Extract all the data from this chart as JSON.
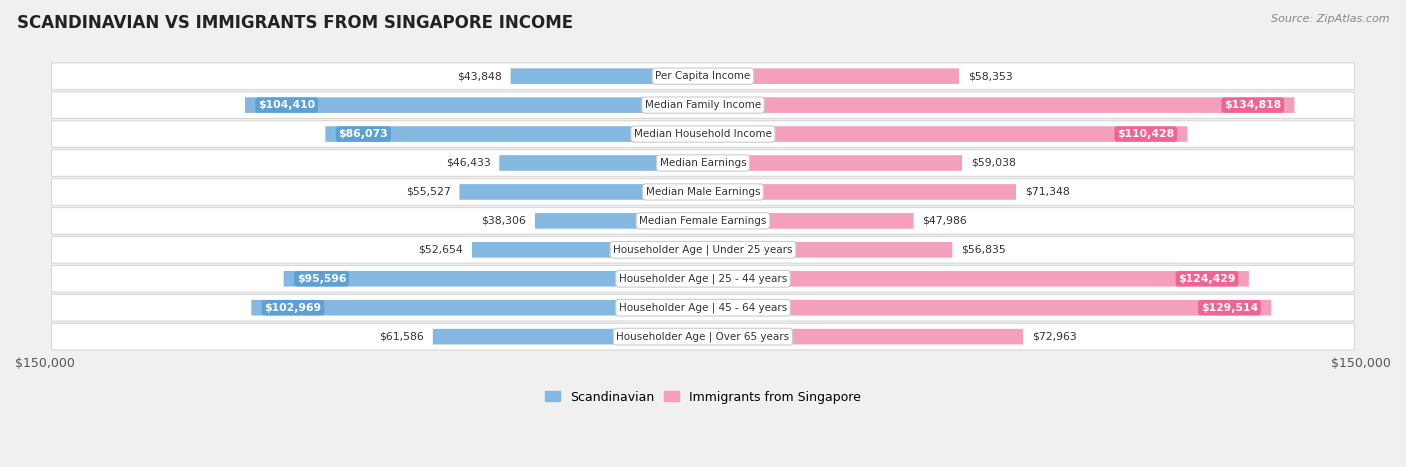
{
  "title": "SCANDINAVIAN VS IMMIGRANTS FROM SINGAPORE INCOME",
  "source": "Source: ZipAtlas.com",
  "categories": [
    "Per Capita Income",
    "Median Family Income",
    "Median Household Income",
    "Median Earnings",
    "Median Male Earnings",
    "Median Female Earnings",
    "Householder Age | Under 25 years",
    "Householder Age | 25 - 44 years",
    "Householder Age | 45 - 64 years",
    "Householder Age | Over 65 years"
  ],
  "scandinavian": [
    43848,
    104410,
    86073,
    46433,
    55527,
    38306,
    52654,
    95596,
    102969,
    61586
  ],
  "singapore": [
    58353,
    134818,
    110428,
    59038,
    71348,
    47986,
    56835,
    124429,
    129514,
    72963
  ],
  "max_val": 150000,
  "scand_color": "#85b8e0",
  "sing_color": "#f4a0bc",
  "scand_color_strong": "#5a9fd4",
  "sing_color_strong": "#f06090",
  "bg_color": "#f0f0f0",
  "row_bg_light": "#f8f8f8",
  "row_bg_dark": "#eeeeee",
  "label_bg": "#ffffff",
  "legend_scand": "Scandinavian",
  "legend_sing": "Immigrants from Singapore",
  "inside_threshold": 75000
}
